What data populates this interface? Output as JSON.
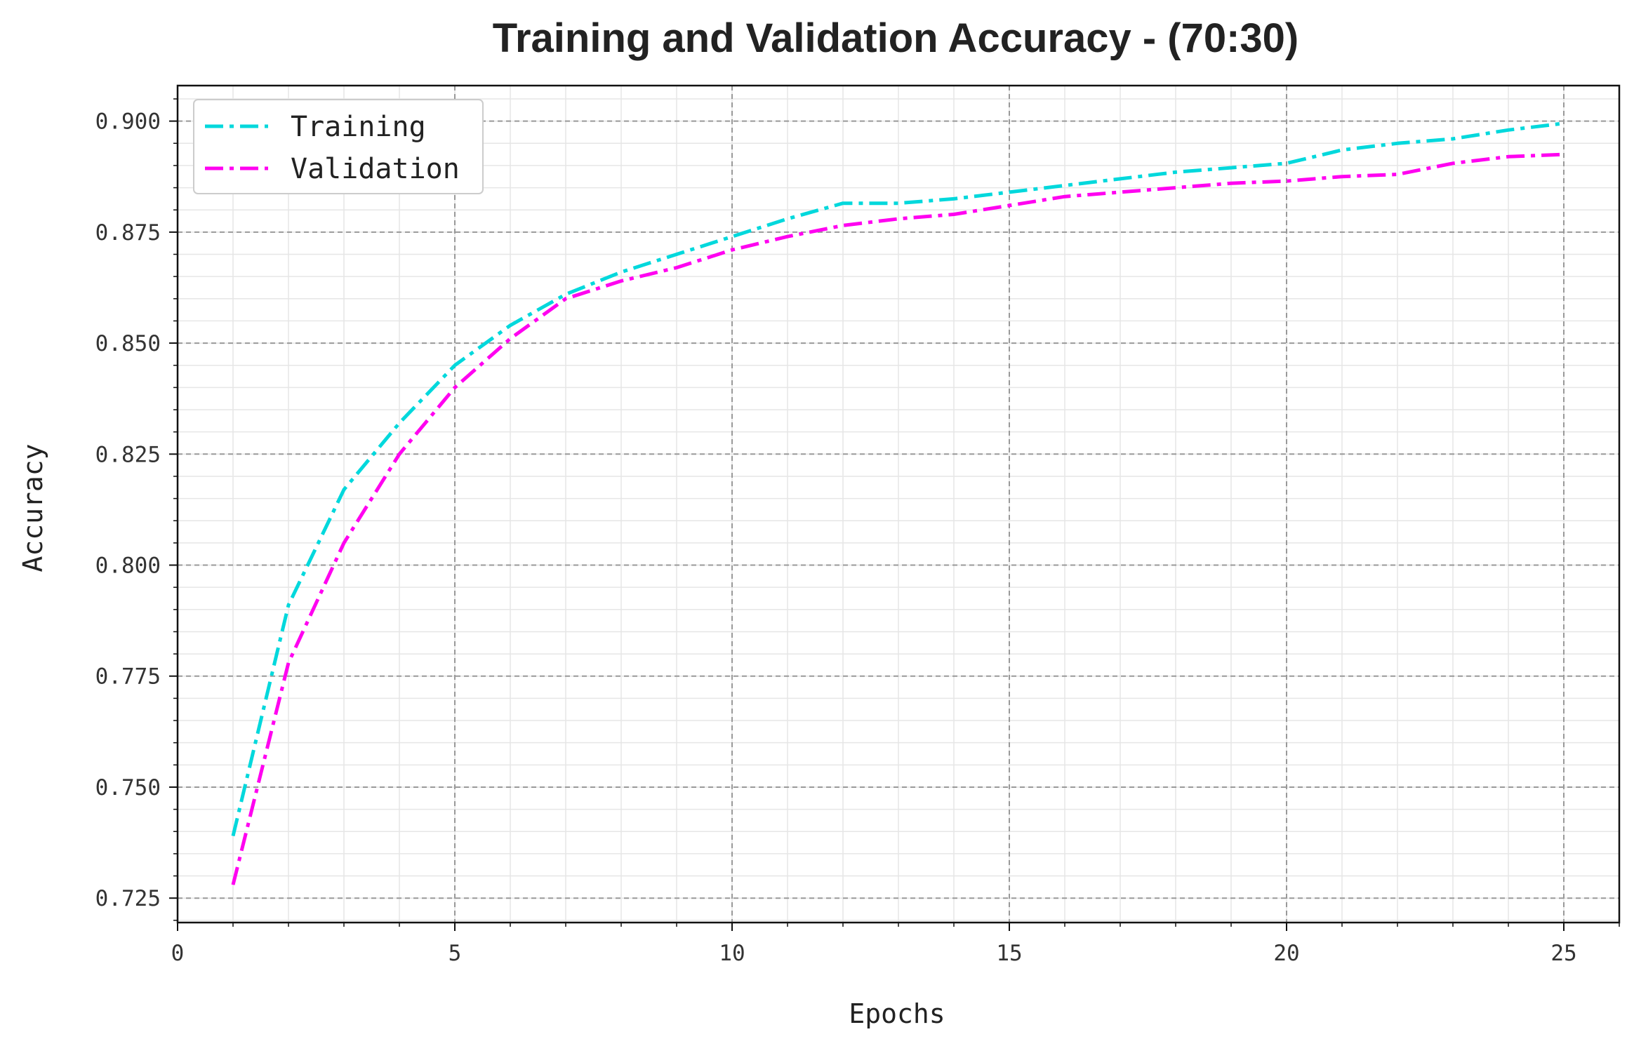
{
  "chart_data": {
    "type": "line",
    "title": "Training and Validation Accuracy - (70:30)",
    "xlabel": "Epochs",
    "ylabel": "Accuracy",
    "xlim": [
      0,
      26
    ],
    "ylim": [
      0.7195,
      0.908
    ],
    "xticks": [
      0,
      5,
      10,
      15,
      20,
      25
    ],
    "xtick_labels": [
      "0",
      "5",
      "10",
      "15",
      "20",
      "25"
    ],
    "yticks": [
      0.725,
      0.75,
      0.775,
      0.8,
      0.825,
      0.85,
      0.875,
      0.9
    ],
    "ytick_labels": [
      "0.725",
      "0.750",
      "0.775",
      "0.800",
      "0.825",
      "0.850",
      "0.875",
      "0.900"
    ],
    "grid": true,
    "legend_position": "top-left",
    "x": [
      1,
      2,
      3,
      4,
      5,
      6,
      7,
      8,
      9,
      10,
      11,
      12,
      13,
      14,
      15,
      16,
      17,
      18,
      19,
      20,
      21,
      22,
      23,
      24,
      25
    ],
    "series": [
      {
        "name": "Training",
        "color": "#00d8dc",
        "linestyle": "dashdot",
        "values": [
          0.739,
          0.791,
          0.817,
          0.832,
          0.845,
          0.854,
          0.861,
          0.866,
          0.87,
          0.874,
          0.878,
          0.8815,
          0.8815,
          0.8825,
          0.884,
          0.8855,
          0.887,
          0.8885,
          0.8895,
          0.8905,
          0.8935,
          0.895,
          0.896,
          0.898,
          0.8995
        ]
      },
      {
        "name": "Validation",
        "color": "#ff00f0",
        "linestyle": "dashdot",
        "values": [
          0.728,
          0.778,
          0.805,
          0.825,
          0.84,
          0.851,
          0.86,
          0.864,
          0.867,
          0.871,
          0.874,
          0.8765,
          0.878,
          0.879,
          0.881,
          0.883,
          0.884,
          0.885,
          0.886,
          0.8865,
          0.8875,
          0.888,
          0.8905,
          0.892,
          0.8925
        ]
      }
    ]
  }
}
